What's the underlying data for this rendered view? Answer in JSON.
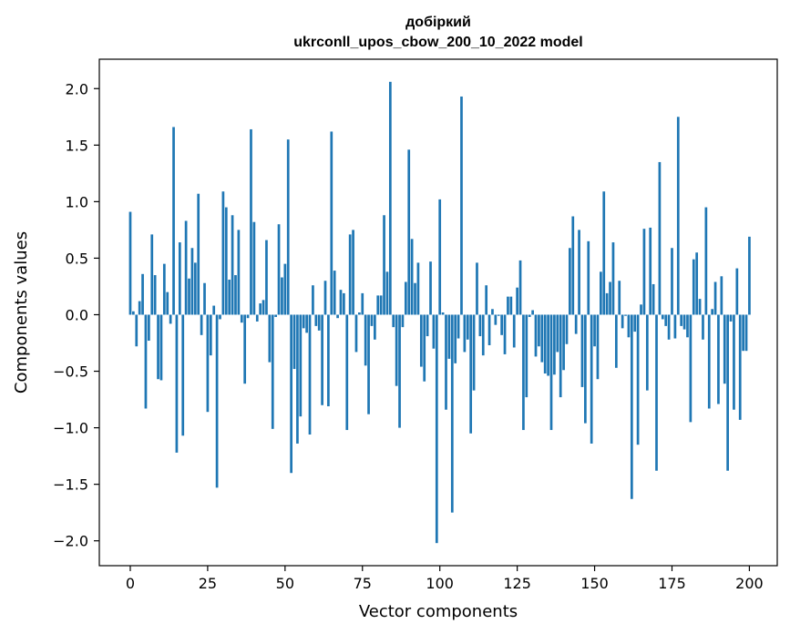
{
  "chart_data": {
    "type": "bar",
    "title_line1": "добіркий",
    "title_line2": "ukrconll_upos_cbow_200_10_2022 model",
    "xlabel": "Vector components",
    "ylabel": "Components values",
    "xlim": [
      -10,
      209
    ],
    "ylim": [
      -2.22,
      2.26
    ],
    "xticks": [
      0,
      25,
      50,
      75,
      100,
      125,
      150,
      175,
      200
    ],
    "xtick_labels": [
      "0",
      "25",
      "50",
      "75",
      "100",
      "125",
      "150",
      "175",
      "200"
    ],
    "yticks": [
      -2.0,
      -1.5,
      -1.0,
      -0.5,
      0.0,
      0.5,
      1.0,
      1.5,
      2.0
    ],
    "ytick_labels": [
      "−2.0",
      "−1.5",
      "−1.0",
      "−0.5",
      "0.0",
      "0.5",
      "1.0",
      "1.5",
      "2.0"
    ],
    "color": "#1f77b4",
    "values": [
      0.91,
      0.03,
      -0.28,
      0.12,
      0.36,
      -0.83,
      -0.23,
      0.71,
      0.35,
      -0.57,
      -0.58,
      0.45,
      0.2,
      -0.08,
      1.66,
      -1.22,
      0.64,
      -1.07,
      0.83,
      0.32,
      0.59,
      0.46,
      1.07,
      -0.18,
      0.28,
      -0.86,
      -0.36,
      0.08,
      -1.53,
      -0.04,
      1.09,
      0.95,
      0.31,
      0.88,
      0.35,
      0.75,
      -0.07,
      -0.61,
      -0.03,
      1.64,
      0.82,
      -0.06,
      0.1,
      0.13,
      0.66,
      -0.42,
      -1.01,
      -0.02,
      0.8,
      0.33,
      0.45,
      1.55,
      -1.4,
      -0.48,
      -1.14,
      -0.9,
      -0.12,
      -0.16,
      -1.06,
      0.26,
      -0.1,
      -0.14,
      -0.8,
      0.3,
      -0.81,
      1.62,
      0.39,
      -0.03,
      0.22,
      0.19,
      -1.02,
      0.71,
      0.75,
      -0.33,
      0.02,
      0.19,
      -0.45,
      -0.88,
      -0.1,
      -0.22,
      0.17,
      0.17,
      0.88,
      0.38,
      2.06,
      -0.11,
      -0.63,
      -1.0,
      -0.11,
      0.29,
      1.46,
      0.67,
      0.28,
      0.46,
      -0.46,
      -0.59,
      -0.19,
      0.47,
      -0.3,
      -2.02,
      1.02,
      0.02,
      -0.84,
      -0.39,
      -1.75,
      -0.43,
      -0.21,
      1.93,
      -0.33,
      -0.22,
      -1.05,
      -0.67,
      0.46,
      -0.19,
      -0.36,
      0.26,
      -0.27,
      0.05,
      -0.09,
      -0.01,
      -0.18,
      -0.35,
      0.16,
      0.16,
      -0.29,
      0.24,
      0.48,
      -1.02,
      -0.73,
      -0.02,
      0.04,
      -0.37,
      -0.28,
      -0.42,
      -0.52,
      -0.54,
      -1.02,
      -0.53,
      -0.33,
      -0.73,
      -0.49,
      -0.26,
      0.59,
      0.87,
      -0.17,
      0.75,
      -0.64,
      -0.96,
      0.65,
      -1.14,
      -0.28,
      -0.57,
      0.38,
      1.09,
      0.19,
      0.29,
      0.64,
      -0.47,
      0.3,
      -0.12,
      -0.01,
      -0.2,
      -1.63,
      -0.15,
      -1.15,
      0.09,
      0.76,
      -0.67,
      0.77,
      0.27,
      -1.38,
      1.35,
      -0.04,
      -0.1,
      -0.22,
      0.59,
      -0.21,
      1.75,
      -0.1,
      -0.13,
      -0.2,
      -0.95,
      0.49,
      0.55,
      0.14,
      -0.22,
      0.95,
      -0.83,
      0.05,
      0.29,
      -0.79,
      0.34,
      -0.61,
      -1.38,
      -0.06,
      -0.84,
      0.41,
      -0.93,
      -0.32,
      -0.32,
      0.69
    ]
  }
}
